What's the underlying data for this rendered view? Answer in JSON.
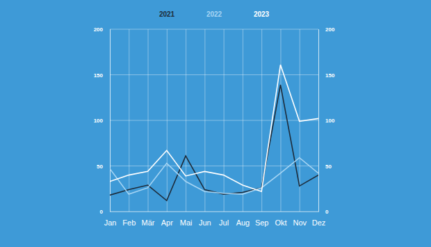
{
  "chart_data": {
    "type": "line",
    "categories": [
      "Jan",
      "Feb",
      "Mär",
      "Apr",
      "Mai",
      "Jun",
      "Jul",
      "Aug",
      "Sep",
      "Okt",
      "Nov",
      "Dez"
    ],
    "series": [
      {
        "name": "2021",
        "color": "#1d2b3a",
        "values": [
          18,
          24,
          29,
          12,
          61,
          24,
          19,
          21,
          26,
          139,
          28,
          40
        ]
      },
      {
        "name": "2022",
        "color": "#a6d5f4",
        "values": [
          47,
          19,
          26,
          53,
          33,
          22,
          20,
          19,
          26,
          42,
          59,
          42
        ]
      },
      {
        "name": "2023",
        "color": "#ffffff",
        "values": [
          33,
          40,
          44,
          67,
          39,
          44,
          40,
          29,
          22,
          161,
          99,
          102
        ]
      }
    ],
    "ylim": [
      0,
      200
    ],
    "yticks": [
      0,
      50,
      100,
      150,
      200
    ],
    "y2lim": [
      0,
      200
    ],
    "y2ticks": [
      0,
      50,
      100,
      150,
      200
    ],
    "grid": true,
    "legend": "top"
  }
}
